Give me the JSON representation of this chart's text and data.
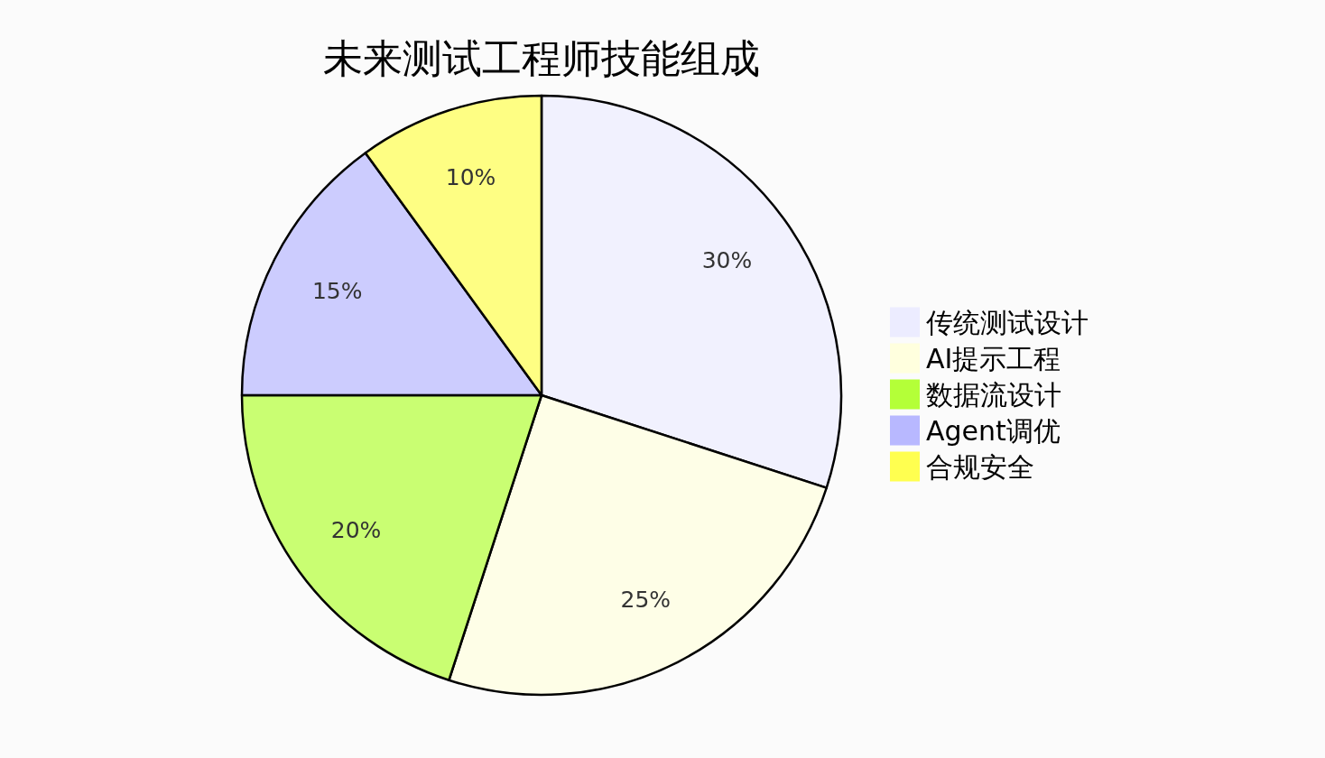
{
  "chart_data": {
    "type": "pie",
    "title": "未来测试工程师技能组成",
    "categories": [
      "传统测试设计",
      "AI提示工程",
      "数据流设计",
      "Agent调优",
      "合规安全"
    ],
    "values": [
      30,
      25,
      20,
      15,
      10
    ],
    "colors": [
      "#ececff",
      "#ffffde",
      "#b4ff38",
      "#b8b8ff",
      "#ffff50"
    ],
    "value_labels": [
      "30%",
      "25%",
      "20%",
      "15%",
      "10%"
    ],
    "legend": "right"
  }
}
